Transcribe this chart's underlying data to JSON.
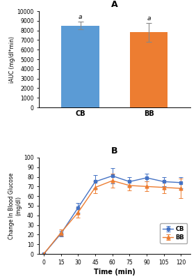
{
  "bar_categories": [
    "CB",
    "BB"
  ],
  "bar_values": [
    8500,
    7800
  ],
  "bar_errors": [
    400,
    950
  ],
  "bar_colors": [
    "#5B9BD5",
    "#ED7D31"
  ],
  "bar_ylabel": "iAUC (mg/dl*min)",
  "bar_ylim": [
    0,
    10000
  ],
  "bar_yticks": [
    0,
    1000,
    2000,
    3000,
    4000,
    5000,
    6000,
    7000,
    8000,
    9000,
    10000
  ],
  "bar_title": "A",
  "bar_annotations": [
    "a",
    "a"
  ],
  "line_x": [
    0,
    15,
    30,
    45,
    60,
    75,
    90,
    105,
    120
  ],
  "line_CB": [
    0,
    21,
    48,
    75,
    81,
    75,
    79,
    75,
    74
  ],
  "line_BB": [
    0,
    22,
    43,
    69,
    76,
    71,
    70,
    69,
    68
  ],
  "line_CB_err": [
    0,
    3,
    5,
    7,
    8,
    5,
    4,
    5,
    6
  ],
  "line_BB_err": [
    0,
    3,
    5,
    6,
    7,
    5,
    5,
    6,
    10
  ],
  "line_ylabel": "Change In Blood Glucose\n(mg/dl)",
  "line_xlabel": "Time (min)",
  "line_ylim": [
    0,
    100
  ],
  "line_yticks": [
    0,
    10,
    20,
    30,
    40,
    50,
    60,
    70,
    80,
    90,
    100
  ],
  "line_xticks": [
    0,
    15,
    30,
    45,
    60,
    75,
    90,
    105,
    120
  ],
  "line_title": "B",
  "line_color_CB": "#4472C4",
  "line_color_BB": "#ED7D31",
  "background_color": "#FFFFFF"
}
